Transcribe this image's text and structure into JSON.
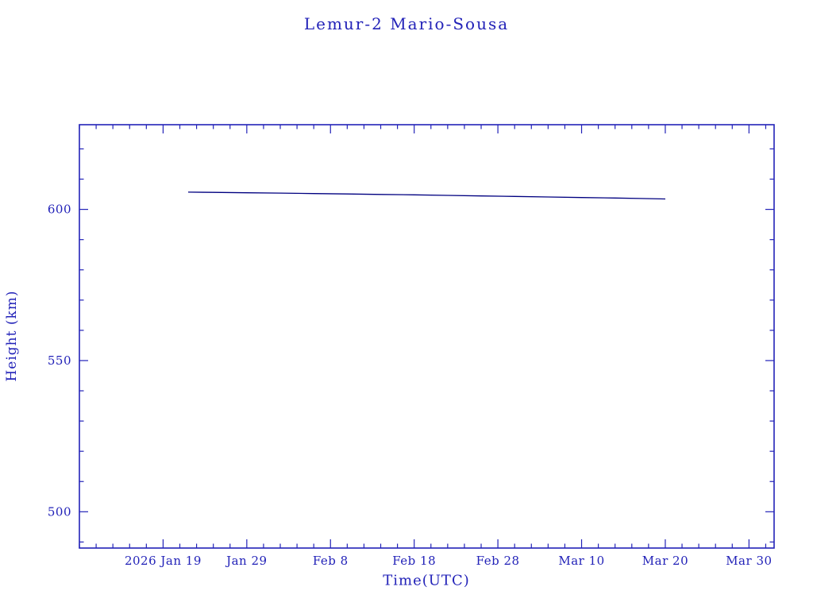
{
  "colors": {
    "text": "#2222b8",
    "frame": "#2222b8",
    "line": "#000080",
    "background": "#ffffff"
  },
  "chart_data": {
    "type": "line",
    "title": "Lemur-2 Mario-Sousa",
    "xlabel": "Time(UTC)",
    "ylabel": "Height (km)",
    "grid": false,
    "legend": false,
    "x_axis": {
      "epoch": "days since 2026 Jan 9",
      "domain_days": [
        0,
        83
      ],
      "minor_tick_step_days": 2,
      "major_ticks": [
        {
          "day": 10,
          "label": "2026 Jan 19"
        },
        {
          "day": 20,
          "label": "Jan 29"
        },
        {
          "day": 30,
          "label": "Feb  8"
        },
        {
          "day": 40,
          "label": "Feb 18"
        },
        {
          "day": 50,
          "label": "Feb 28"
        },
        {
          "day": 60,
          "label": "Mar 10"
        },
        {
          "day": 70,
          "label": "Mar 20"
        },
        {
          "day": 80,
          "label": "Mar 30"
        }
      ]
    },
    "y_axis": {
      "ylim": [
        488,
        628
      ],
      "major_ticks": [
        500,
        550,
        600
      ],
      "minor_tick_step": 10
    },
    "series": [
      {
        "name": "Lemur-2 Mario-Sousa height",
        "x_days": [
          13,
          16,
          20,
          24,
          28,
          32,
          36,
          40,
          44,
          48,
          52,
          56,
          60,
          64,
          67,
          70
        ],
        "values": [
          605.7,
          605.62,
          605.5,
          605.38,
          605.24,
          605.1,
          604.95,
          604.8,
          604.63,
          604.45,
          604.28,
          604.1,
          603.92,
          603.75,
          603.6,
          603.45
        ]
      }
    ]
  }
}
